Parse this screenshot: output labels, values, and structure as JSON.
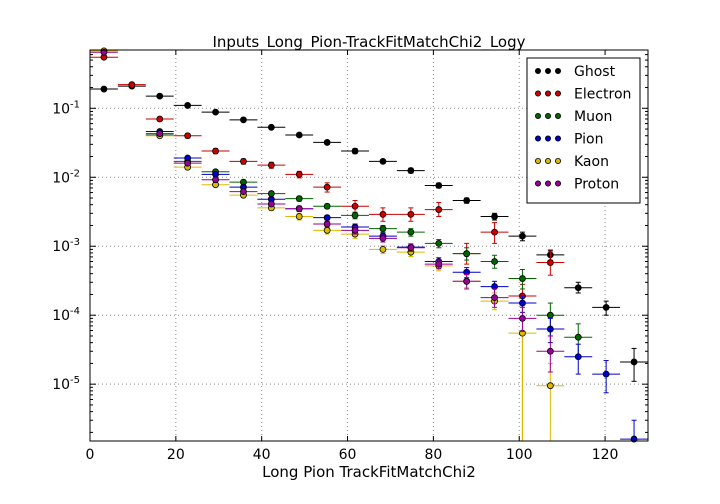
{
  "chart_data": {
    "type": "scatter",
    "title": "Inputs_Long_Pion-TrackFitMatchChi2_Logy",
    "xlabel": "Long Pion TrackFitMatchChi2",
    "ylabel": "",
    "xlim": [
      0,
      130
    ],
    "ylim": [
      1.5e-06,
      0.7
    ],
    "yscale": "log",
    "grid": true,
    "legend": "top-right",
    "bin_half_width": 3.25,
    "x_ticks": [
      0,
      20,
      40,
      60,
      80,
      100,
      120
    ],
    "x_tick_labels": [
      "0",
      "20",
      "40",
      "60",
      "80",
      "100",
      "120"
    ],
    "y_ticks": [
      1e-05,
      0.0001,
      0.001,
      0.01,
      0.1
    ],
    "y_tick_labels": [
      {
        "base": "10",
        "exp": "-5"
      },
      {
        "base": "10",
        "exp": "-4"
      },
      {
        "base": "10",
        "exp": "-3"
      },
      {
        "base": "10",
        "exp": "-2"
      },
      {
        "base": "10",
        "exp": "-1"
      }
    ],
    "series": [
      {
        "name": "Ghost",
        "color": "#000000",
        "points": [
          {
            "x": 3.25,
            "y": 0.19,
            "lo": 0.185,
            "hi": 0.195
          },
          {
            "x": 9.75,
            "y": 0.21,
            "lo": 0.205,
            "hi": 0.215
          },
          {
            "x": 16.25,
            "y": 0.15,
            "lo": 0.145,
            "hi": 0.155
          },
          {
            "x": 22.75,
            "y": 0.11,
            "lo": 0.106,
            "hi": 0.114
          },
          {
            "x": 29.25,
            "y": 0.088,
            "lo": 0.085,
            "hi": 0.091
          },
          {
            "x": 35.75,
            "y": 0.068,
            "lo": 0.065,
            "hi": 0.071
          },
          {
            "x": 42.25,
            "y": 0.053,
            "lo": 0.051,
            "hi": 0.055
          },
          {
            "x": 48.75,
            "y": 0.041,
            "lo": 0.039,
            "hi": 0.043
          },
          {
            "x": 55.25,
            "y": 0.032,
            "lo": 0.03,
            "hi": 0.034
          },
          {
            "x": 61.75,
            "y": 0.024,
            "lo": 0.022,
            "hi": 0.026
          },
          {
            "x": 68.25,
            "y": 0.017,
            "lo": 0.016,
            "hi": 0.018
          },
          {
            "x": 74.75,
            "y": 0.0125,
            "lo": 0.0115,
            "hi": 0.0135
          },
          {
            "x": 81.25,
            "y": 0.0076,
            "lo": 0.007,
            "hi": 0.0082
          },
          {
            "x": 87.75,
            "y": 0.0046,
            "lo": 0.0042,
            "hi": 0.005
          },
          {
            "x": 94.25,
            "y": 0.0027,
            "lo": 0.0024,
            "hi": 0.003
          },
          {
            "x": 100.75,
            "y": 0.0014,
            "lo": 0.0012,
            "hi": 0.0016
          },
          {
            "x": 107.25,
            "y": 0.00075,
            "lo": 0.00062,
            "hi": 0.00088
          },
          {
            "x": 113.75,
            "y": 0.00025,
            "lo": 0.00021,
            "hi": 0.0003
          },
          {
            "x": 120.25,
            "y": 0.00013,
            "lo": 0.0001,
            "hi": 0.00016
          },
          {
            "x": 126.75,
            "y": 2.1e-05,
            "lo": 1.1e-05,
            "hi": 3.3e-05
          }
        ]
      },
      {
        "name": "Electron",
        "color": "#cc0000",
        "points": [
          {
            "x": 3.25,
            "y": 0.55,
            "lo": 0.53,
            "hi": 0.57
          },
          {
            "x": 9.75,
            "y": 0.22,
            "lo": 0.21,
            "hi": 0.23
          },
          {
            "x": 16.25,
            "y": 0.07,
            "lo": 0.066,
            "hi": 0.074
          },
          {
            "x": 22.75,
            "y": 0.04,
            "lo": 0.037,
            "hi": 0.043
          },
          {
            "x": 29.25,
            "y": 0.024,
            "lo": 0.022,
            "hi": 0.026
          },
          {
            "x": 35.75,
            "y": 0.017,
            "lo": 0.0155,
            "hi": 0.0185
          },
          {
            "x": 42.25,
            "y": 0.015,
            "lo": 0.0135,
            "hi": 0.0165
          },
          {
            "x": 48.75,
            "y": 0.011,
            "lo": 0.0098,
            "hi": 0.0122
          },
          {
            "x": 55.25,
            "y": 0.0072,
            "lo": 0.0061,
            "hi": 0.0083
          },
          {
            "x": 61.75,
            "y": 0.0038,
            "lo": 0.0031,
            "hi": 0.0046
          },
          {
            "x": 68.25,
            "y": 0.0029,
            "lo": 0.0023,
            "hi": 0.0036
          },
          {
            "x": 74.75,
            "y": 0.0029,
            "lo": 0.0023,
            "hi": 0.0036
          },
          {
            "x": 81.25,
            "y": 0.0034,
            "lo": 0.0027,
            "hi": 0.0043
          },
          {
            "x": 87.75,
            "y": 0.00078,
            "lo": 0.00055,
            "hi": 0.0011
          },
          {
            "x": 94.25,
            "y": 0.0016,
            "lo": 0.0011,
            "hi": 0.0022
          },
          {
            "x": 100.75,
            "y": 0.00019,
            "lo": 1.5e-06,
            "hi": 0.00028
          },
          {
            "x": 107.25,
            "y": 0.00058,
            "lo": 0.00038,
            "hi": 0.00085
          }
        ]
      },
      {
        "name": "Muon",
        "color": "#006600",
        "points": [
          {
            "x": 16.25,
            "y": 0.041,
            "lo": 0.039,
            "hi": 0.043
          },
          {
            "x": 22.75,
            "y": 0.017,
            "lo": 0.016,
            "hi": 0.018
          },
          {
            "x": 29.25,
            "y": 0.012,
            "lo": 0.0112,
            "hi": 0.0128
          },
          {
            "x": 35.75,
            "y": 0.0085,
            "lo": 0.0079,
            "hi": 0.0091
          },
          {
            "x": 42.25,
            "y": 0.0058,
            "lo": 0.0054,
            "hi": 0.0062
          },
          {
            "x": 48.75,
            "y": 0.0049,
            "lo": 0.0045,
            "hi": 0.0053
          },
          {
            "x": 55.25,
            "y": 0.0038,
            "lo": 0.0035,
            "hi": 0.0041
          },
          {
            "x": 61.75,
            "y": 0.0028,
            "lo": 0.0025,
            "hi": 0.0031
          },
          {
            "x": 68.25,
            "y": 0.0018,
            "lo": 0.0016,
            "hi": 0.002
          },
          {
            "x": 74.75,
            "y": 0.0016,
            "lo": 0.0014,
            "hi": 0.0018
          },
          {
            "x": 81.25,
            "y": 0.0011,
            "lo": 0.00095,
            "hi": 0.00125
          },
          {
            "x": 87.75,
            "y": 0.00078,
            "lo": 0.00063,
            "hi": 0.00095
          },
          {
            "x": 94.25,
            "y": 0.0006,
            "lo": 0.00048,
            "hi": 0.00074
          },
          {
            "x": 100.75,
            "y": 0.00034,
            "lo": 0.00024,
            "hi": 0.00046
          },
          {
            "x": 107.25,
            "y": 0.0001,
            "lo": 5e-05,
            "hi": 0.00015
          },
          {
            "x": 113.75,
            "y": 4.8e-05,
            "lo": 2.4e-05,
            "hi": 7.5e-05
          }
        ]
      },
      {
        "name": "Pion",
        "color": "#0000cc",
        "points": [
          {
            "x": 16.25,
            "y": 0.046,
            "lo": 0.044,
            "hi": 0.048
          },
          {
            "x": 22.75,
            "y": 0.019,
            "lo": 0.018,
            "hi": 0.02
          },
          {
            "x": 29.25,
            "y": 0.011,
            "lo": 0.0104,
            "hi": 0.0116
          },
          {
            "x": 35.75,
            "y": 0.0072,
            "lo": 0.0068,
            "hi": 0.0076
          },
          {
            "x": 42.25,
            "y": 0.0048,
            "lo": 0.0045,
            "hi": 0.0051
          },
          {
            "x": 48.75,
            "y": 0.0035,
            "lo": 0.0032,
            "hi": 0.0038
          },
          {
            "x": 55.25,
            "y": 0.0026,
            "lo": 0.0024,
            "hi": 0.0028
          },
          {
            "x": 61.75,
            "y": 0.0019,
            "lo": 0.0017,
            "hi": 0.0021
          },
          {
            "x": 68.25,
            "y": 0.0014,
            "lo": 0.00125,
            "hi": 0.00155
          },
          {
            "x": 74.75,
            "y": 0.00097,
            "lo": 0.00086,
            "hi": 0.00108
          },
          {
            "x": 81.25,
            "y": 0.0006,
            "lo": 0.00052,
            "hi": 0.00068
          },
          {
            "x": 87.75,
            "y": 0.00042,
            "lo": 0.00035,
            "hi": 0.00049
          },
          {
            "x": 94.25,
            "y": 0.00026,
            "lo": 0.00021,
            "hi": 0.00031
          },
          {
            "x": 100.75,
            "y": 0.00015,
            "lo": 0.00011,
            "hi": 0.00019
          },
          {
            "x": 107.25,
            "y": 6.3e-05,
            "lo": 4e-05,
            "hi": 9e-05
          },
          {
            "x": 113.75,
            "y": 2.5e-05,
            "lo": 1.4e-05,
            "hi": 3.8e-05
          },
          {
            "x": 120.25,
            "y": 1.4e-05,
            "lo": 7.5e-06,
            "hi": 2.2e-05
          },
          {
            "x": 126.75,
            "y": 1.6e-06,
            "lo": 1.5e-06,
            "hi": 3e-06
          }
        ]
      },
      {
        "name": "Kaon",
        "color": "#ddbb00",
        "points": [
          {
            "x": 3.25,
            "y": 0.68,
            "lo": 0.66,
            "hi": 0.7
          },
          {
            "x": 16.25,
            "y": 0.04,
            "lo": 0.038,
            "hi": 0.042
          },
          {
            "x": 22.75,
            "y": 0.014,
            "lo": 0.013,
            "hi": 0.015
          },
          {
            "x": 29.25,
            "y": 0.0078,
            "lo": 0.0073,
            "hi": 0.0083
          },
          {
            "x": 35.75,
            "y": 0.0055,
            "lo": 0.0051,
            "hi": 0.0059
          },
          {
            "x": 42.25,
            "y": 0.0036,
            "lo": 0.0033,
            "hi": 0.0039
          },
          {
            "x": 48.75,
            "y": 0.0027,
            "lo": 0.0024,
            "hi": 0.003
          },
          {
            "x": 55.25,
            "y": 0.0017,
            "lo": 0.0015,
            "hi": 0.0019
          },
          {
            "x": 61.75,
            "y": 0.0015,
            "lo": 0.0013,
            "hi": 0.0017
          },
          {
            "x": 68.25,
            "y": 0.0009,
            "lo": 0.00078,
            "hi": 0.00102
          },
          {
            "x": 74.75,
            "y": 0.00082,
            "lo": 0.00071,
            "hi": 0.00093
          },
          {
            "x": 81.25,
            "y": 0.00052,
            "lo": 0.00044,
            "hi": 0.0006
          },
          {
            "x": 87.75,
            "y": 0.00031,
            "lo": 0.00025,
            "hi": 0.00038
          },
          {
            "x": 94.25,
            "y": 0.00016,
            "lo": 0.00012,
            "hi": 0.00021
          },
          {
            "x": 100.75,
            "y": 5.5e-05,
            "lo": 1.5e-06,
            "hi": 8.5e-05
          },
          {
            "x": 107.25,
            "y": 9.5e-06,
            "lo": 1.5e-06,
            "hi": 2e-05
          }
        ]
      },
      {
        "name": "Proton",
        "color": "#990099",
        "points": [
          {
            "x": 3.25,
            "y": 0.65,
            "lo": 0.63,
            "hi": 0.67
          },
          {
            "x": 16.25,
            "y": 0.043,
            "lo": 0.041,
            "hi": 0.045
          },
          {
            "x": 22.75,
            "y": 0.016,
            "lo": 0.015,
            "hi": 0.017
          },
          {
            "x": 29.25,
            "y": 0.0092,
            "lo": 0.0086,
            "hi": 0.0098
          },
          {
            "x": 35.75,
            "y": 0.0062,
            "lo": 0.0058,
            "hi": 0.0066
          },
          {
            "x": 42.25,
            "y": 0.0041,
            "lo": 0.0038,
            "hi": 0.0044
          },
          {
            "x": 48.75,
            "y": 0.0035,
            "lo": 0.0032,
            "hi": 0.0038
          },
          {
            "x": 55.25,
            "y": 0.0021,
            "lo": 0.0019,
            "hi": 0.0023
          },
          {
            "x": 61.75,
            "y": 0.0017,
            "lo": 0.0015,
            "hi": 0.0019
          },
          {
            "x": 68.25,
            "y": 0.0013,
            "lo": 0.00115,
            "hi": 0.00145
          },
          {
            "x": 74.75,
            "y": 0.00095,
            "lo": 0.00084,
            "hi": 0.00106
          },
          {
            "x": 81.25,
            "y": 0.00055,
            "lo": 0.00047,
            "hi": 0.00063
          },
          {
            "x": 87.75,
            "y": 0.00031,
            "lo": 0.00024,
            "hi": 0.00039
          },
          {
            "x": 94.25,
            "y": 0.00018,
            "lo": 0.00013,
            "hi": 0.00024
          },
          {
            "x": 100.75,
            "y": 9e-05,
            "lo": 5.8e-05,
            "hi": 0.00013
          },
          {
            "x": 107.25,
            "y": 3e-05,
            "lo": 1.5e-05,
            "hi": 5e-05
          }
        ]
      }
    ]
  }
}
